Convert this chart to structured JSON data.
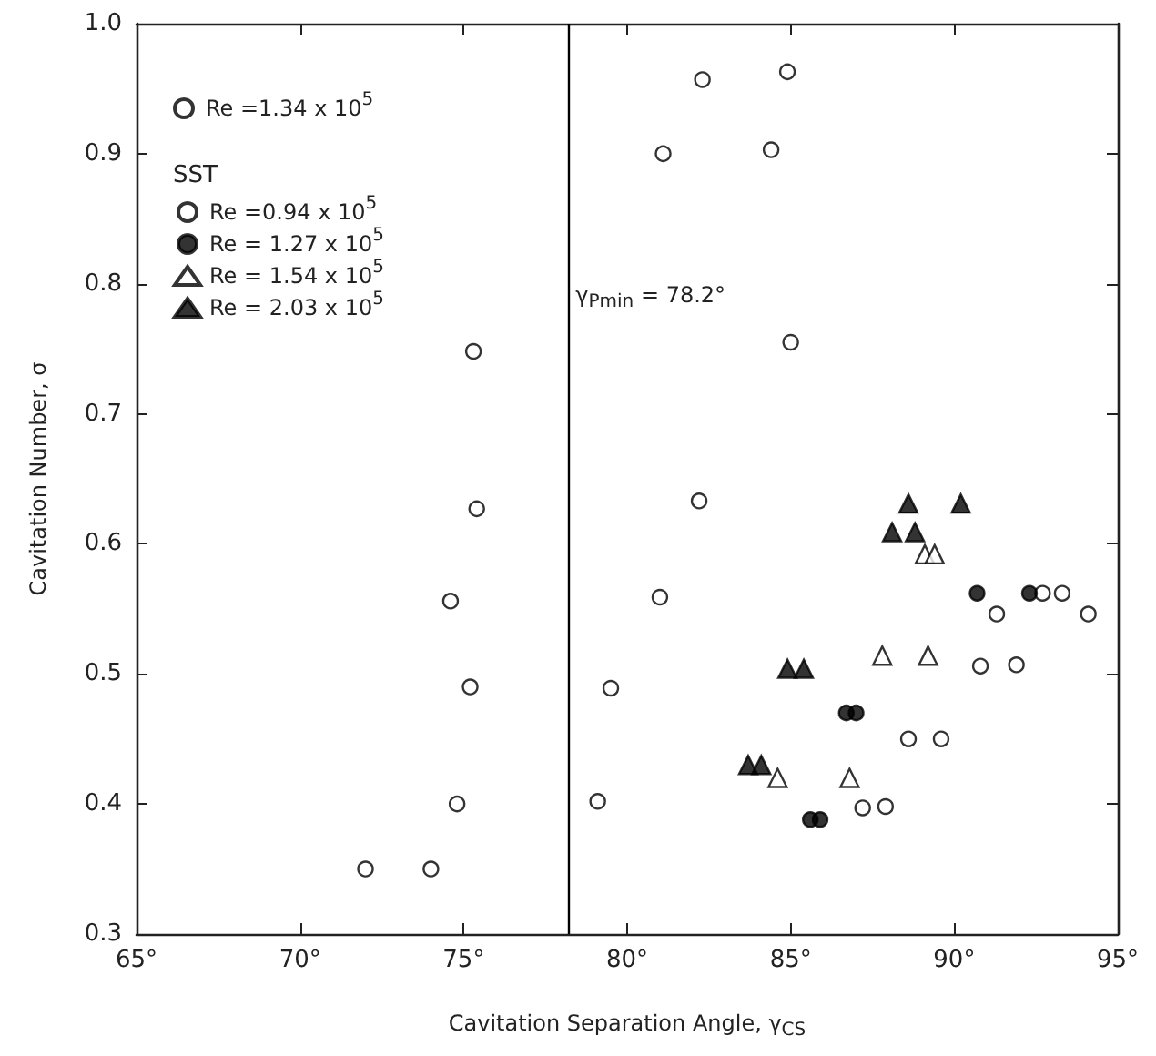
{
  "chart_data": {
    "type": "scatter",
    "xlabel": "Cavitation Separation Angle, γ$_{CS}$",
    "ylabel": "Cavitation Number, σ",
    "xlim": [
      65,
      95
    ],
    "xticks": [
      {
        "value": 65,
        "label": "65°"
      },
      {
        "value": 70,
        "label": "70°"
      },
      {
        "value": 75,
        "label": "75°"
      },
      {
        "value": 80,
        "label": "80°"
      },
      {
        "value": 85,
        "label": "85°"
      },
      {
        "value": 90,
        "label": "90°"
      },
      {
        "value": 95,
        "label": "95°"
      }
    ],
    "ylim": [
      0.3,
      1.0
    ],
    "yticks": [
      0.3,
      0.4,
      0.5,
      0.6,
      0.7,
      0.8,
      0.9,
      {
        "value": 1.0,
        "label": "1.0"
      }
    ],
    "grid": false,
    "legend": "top left",
    "annotations": [
      "SST"
    ],
    "ref_lines": [
      {
        "axis": "x",
        "value": 78.2,
        "label": "γ$_{Pmin}$ = 78.2°",
        "color": "#000000",
        "line_style": "solid"
      }
    ],
    "series": [
      {
        "name": "Re =1.34 x 10$^{5}$",
        "color": "#ffffff",
        "marker": "circle",
        "x": [
          72.0,
          74.0,
          74.8,
          75.2,
          74.6,
          75.4,
          75.3,
          84.9,
          82.3,
          81.1,
          84.4,
          85.0,
          82.2,
          81.0,
          79.5,
          79.1
        ],
        "values": [
          0.35,
          0.35,
          0.4,
          0.49,
          0.556,
          0.627,
          0.748,
          0.963,
          0.957,
          0.9,
          0.903,
          0.755,
          0.633,
          0.559,
          0.489,
          0.402
        ]
      },
      {
        "name": "Re =0.94 x 10$^{5}$",
        "color": "#ffffff",
        "marker": "circle",
        "x": [
          87.2,
          87.9,
          88.6,
          89.6,
          90.8,
          91.9,
          91.3,
          94.1,
          92.7,
          93.3
        ],
        "values": [
          0.397,
          0.398,
          0.45,
          0.45,
          0.506,
          0.507,
          0.546,
          0.546,
          0.562,
          0.562
        ]
      },
      {
        "name": "Re = 1.27 x 10$^{5}$",
        "color": "#000000",
        "marker": "circle",
        "x": [
          85.6,
          85.9,
          86.7,
          87.0,
          90.7,
          92.3
        ],
        "values": [
          0.388,
          0.388,
          0.47,
          0.47,
          0.562,
          0.562
        ]
      },
      {
        "name": "Re = 1.54 x 10$^{5}$",
        "color": "#ffffff",
        "marker": "triangle",
        "x": [
          84.6,
          86.8,
          87.8,
          89.2,
          89.1,
          89.4
        ],
        "values": [
          0.42,
          0.42,
          0.514,
          0.514,
          0.592,
          0.592
        ]
      },
      {
        "name": "Re = 2.03 x 10$^{5}$",
        "color": "#000000",
        "marker": "triangle",
        "x": [
          83.7,
          84.1,
          84.9,
          85.4,
          88.1,
          88.8,
          88.6,
          90.2
        ],
        "values": [
          0.43,
          0.43,
          0.504,
          0.504,
          0.609,
          0.609,
          0.631,
          0.631
        ]
      }
    ]
  }
}
